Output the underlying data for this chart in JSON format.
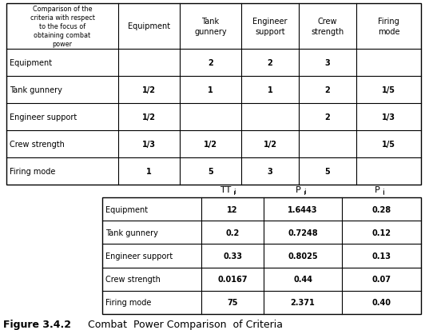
{
  "title": "Figure 3.4.2  Combat  Power Comparison  of Criteria",
  "table1": {
    "row_header_label": "Comparison of the\ncriteria with respect\nto the focus of\nobtaining combat\npower",
    "col_headers": [
      "Equipment",
      "Tank\ngunnery",
      "Engineer\nsupport",
      "Crew\nstrength",
      "Firing\nmode"
    ],
    "rows": [
      [
        "Equipment",
        "",
        "2",
        "2",
        "3",
        ""
      ],
      [
        "Tank gunnery",
        "1/2",
        "1",
        "1",
        "2",
        "1/5"
      ],
      [
        "Engineer support",
        "1/2",
        "",
        "",
        "2",
        "1/3"
      ],
      [
        "Crew strength",
        "1/3",
        "1/2",
        "1/2",
        "",
        "1/5"
      ],
      [
        "Firing mode",
        "1",
        "5",
        "3",
        "5",
        ""
      ]
    ]
  },
  "table2": {
    "col_headers": [
      "TT",
      "P",
      "P"
    ],
    "rows": [
      [
        "Equipment",
        "12",
        "1.6443",
        "0.28"
      ],
      [
        "Tank gunnery",
        "0.2",
        "0.7248",
        "0.12"
      ],
      [
        "Engineer support",
        "0.33",
        "0.8025",
        "0.13"
      ],
      [
        "Crew strength",
        "0.0167",
        "0.44",
        "0.07"
      ],
      [
        "Firing mode",
        "75",
        "2.371",
        "0.40"
      ]
    ]
  },
  "bg_color": "white",
  "line_color": "black",
  "text_color": "black"
}
